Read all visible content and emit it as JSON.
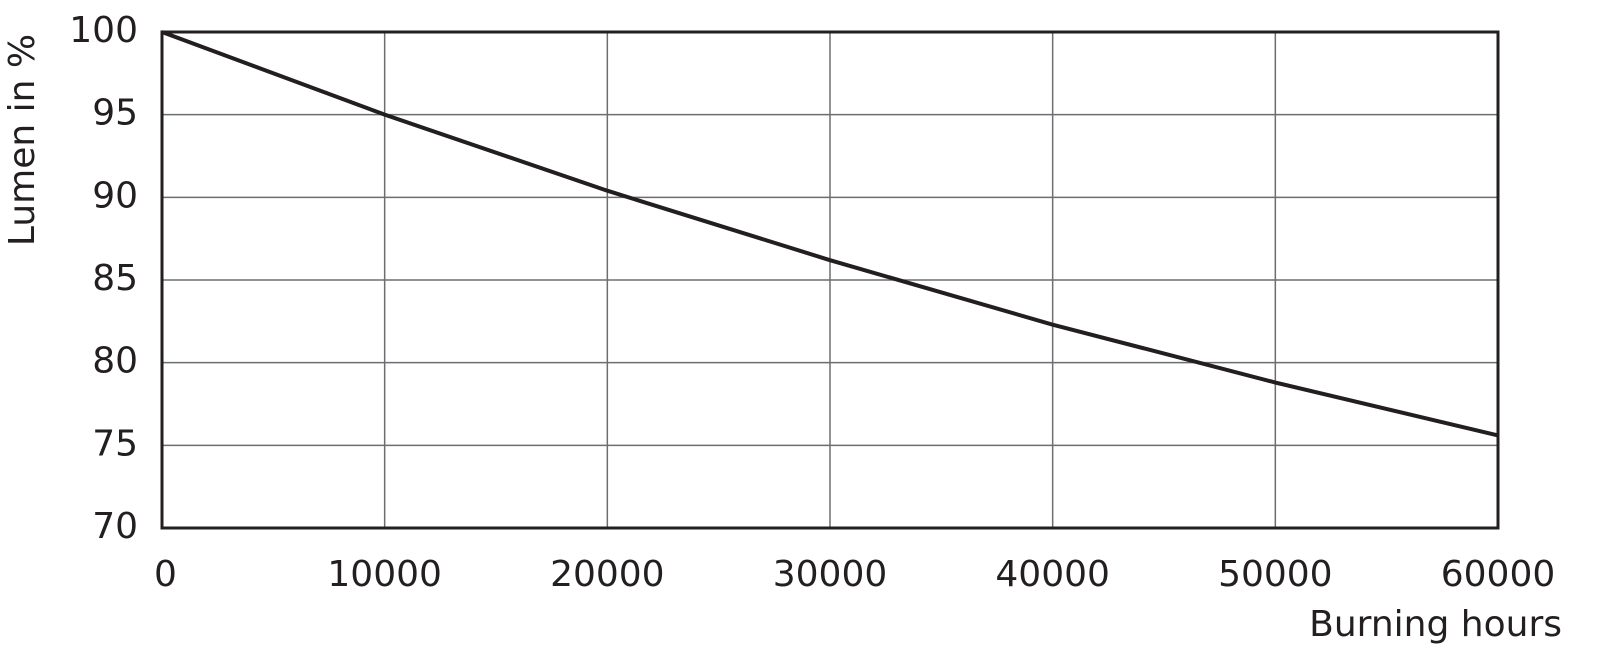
{
  "chart_data": {
    "type": "line",
    "x_label": "Burning hours",
    "y_label": "Lumen in %",
    "x": [
      0,
      10000,
      20000,
      30000,
      40000,
      50000,
      60000
    ],
    "series": [
      {
        "color": "#231f20",
        "values": [
          100,
          95,
          90.4,
          86.2,
          82.3,
          78.8,
          75.6
        ]
      }
    ],
    "xlim": [
      0,
      60000
    ],
    "xticks": [
      0,
      10000,
      20000,
      30000,
      40000,
      50000,
      60000
    ],
    "ylim": [
      70,
      100
    ],
    "yticks": [
      70,
      75,
      80,
      85,
      90,
      95,
      100
    ],
    "grid": true
  }
}
